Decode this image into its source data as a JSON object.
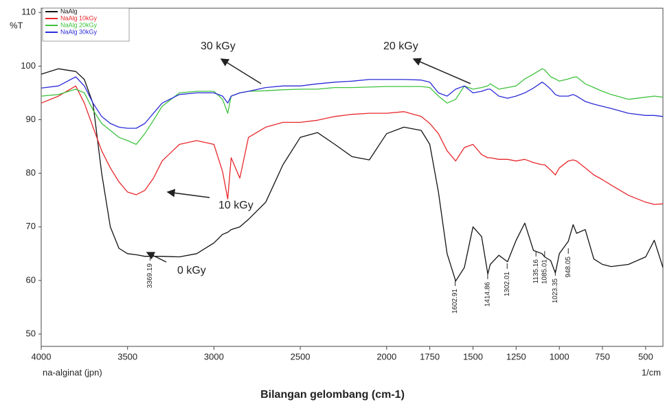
{
  "chart_data": {
    "type": "line",
    "title": "Bilangan gelombang (cm-1)",
    "y_label": "%T",
    "x_label": "1/cm",
    "sample_label": "na-alginat (jpn)",
    "x": [
      4000,
      3900,
      3800,
      3750,
      3700,
      3650,
      3600,
      3550,
      3500,
      3450,
      3400,
      3350,
      3300,
      3200,
      3100,
      3000,
      2950,
      2920,
      2900,
      2850,
      2800,
      2700,
      2600,
      2500,
      2400,
      2300,
      2200,
      2100,
      2000,
      1900,
      1800,
      1750,
      1700,
      1650,
      1600,
      1550,
      1500,
      1450,
      1414,
      1400,
      1350,
      1300,
      1250,
      1200,
      1150,
      1100,
      1085,
      1050,
      1023,
      1000,
      948,
      920,
      900,
      850,
      800,
      750,
      700,
      600,
      500,
      450,
      400
    ],
    "series": [
      {
        "name": "NaAlg",
        "color": "#111111",
        "values": [
          98.5,
          99.5,
          99,
          97.5,
          93,
          80,
          70,
          66,
          65,
          64.8,
          64.5,
          64.5,
          64.5,
          64.4,
          65,
          67,
          68.6,
          69,
          69.5,
          70,
          71.4,
          74.6,
          81.6,
          86.7,
          87.6,
          85.4,
          83.1,
          82.5,
          87.4,
          88.6,
          88,
          85.4,
          76.5,
          65,
          59.9,
          62.4,
          70,
          68.2,
          61.2,
          63,
          64.7,
          63.5,
          67.5,
          70.7,
          65.6,
          65,
          64.4,
          63.7,
          61.4,
          65,
          67.3,
          70.4,
          68.8,
          69.5,
          64,
          63,
          62.6,
          63,
          64.4,
          67.5,
          62.4
        ]
      },
      {
        "name": "NaAlg 10kGy",
        "color": "#e8262a",
        "values": [
          93.1,
          94.4,
          96.3,
          93.1,
          88.6,
          84.2,
          81,
          78.4,
          76.5,
          76,
          76.8,
          79.1,
          82.3,
          85.4,
          86.1,
          85.4,
          80.3,
          75.2,
          82.9,
          79.1,
          86.7,
          88.6,
          89.5,
          89.5,
          89.9,
          90.6,
          91,
          91.2,
          91.2,
          91.5,
          90.6,
          89.3,
          87.4,
          84.2,
          82.3,
          84.8,
          85.4,
          83.5,
          82.9,
          82.9,
          82.6,
          82.6,
          82.3,
          82.6,
          82,
          81.6,
          81.6,
          80.6,
          79.7,
          81,
          82.3,
          82.5,
          82.3,
          81,
          79.7,
          78.8,
          77.8,
          75.9,
          74.6,
          74.2,
          74.3
        ]
      },
      {
        "name": "NaAlg 20kGy",
        "color": "#3cc23c",
        "values": [
          94.4,
          94.7,
          95.7,
          95,
          91.8,
          89.3,
          88,
          86.7,
          86.1,
          85.4,
          87.4,
          89.9,
          92.5,
          95,
          95.3,
          95.3,
          93.8,
          91.2,
          94.4,
          95,
          95.3,
          95.4,
          95.6,
          95.7,
          95.7,
          96,
          96,
          96.1,
          96.2,
          96.2,
          96.2,
          96,
          94.4,
          93.1,
          93.8,
          96.3,
          95.7,
          96,
          96.3,
          96.7,
          95.7,
          96,
          96.3,
          97.6,
          98.5,
          99.5,
          99.3,
          98,
          97.6,
          97.2,
          97.6,
          97.9,
          98,
          96.7,
          96,
          95.3,
          94.7,
          93.8,
          94.2,
          94.4,
          94.2
        ]
      },
      {
        "name": "NaAlg 30kGy",
        "color": "#2a2ad8",
        "values": [
          95.9,
          96.3,
          98,
          96.3,
          93.1,
          90.6,
          89.3,
          88.6,
          88.4,
          88.4,
          89.3,
          91.2,
          93.1,
          94.7,
          95,
          95,
          94.4,
          93.1,
          94.4,
          95,
          95.3,
          96,
          96.3,
          96.3,
          96.7,
          97,
          97.2,
          97.5,
          97.5,
          97.5,
          97.4,
          97,
          95,
          94.4,
          95.7,
          96.3,
          95,
          95.3,
          95.7,
          95.7,
          94.4,
          94,
          94.4,
          95,
          95.9,
          97,
          96.7,
          95.7,
          94.7,
          94.4,
          94.4,
          94.7,
          94.4,
          93.4,
          92.9,
          92.5,
          92.1,
          91.2,
          90.8,
          90.8,
          90.6
        ]
      }
    ],
    "xlim": [
      4000,
      400
    ],
    "ylim": [
      47.7,
      110.8
    ],
    "xticks": [
      4000,
      3500,
      3000,
      2500,
      2000,
      1750,
      1500,
      1250,
      1000,
      750,
      500
    ],
    "yticks": [
      50,
      60,
      70,
      80,
      90,
      100,
      110
    ],
    "annotations": [
      "30 kGy",
      "20 kGy",
      "10 kGy",
      "0 kGy"
    ],
    "peak_labels": [
      "3369.19",
      "1602.91",
      "1414.86",
      "1302.01",
      "1135.16",
      "1085.01",
      "1023.35",
      "948.05"
    ]
  }
}
